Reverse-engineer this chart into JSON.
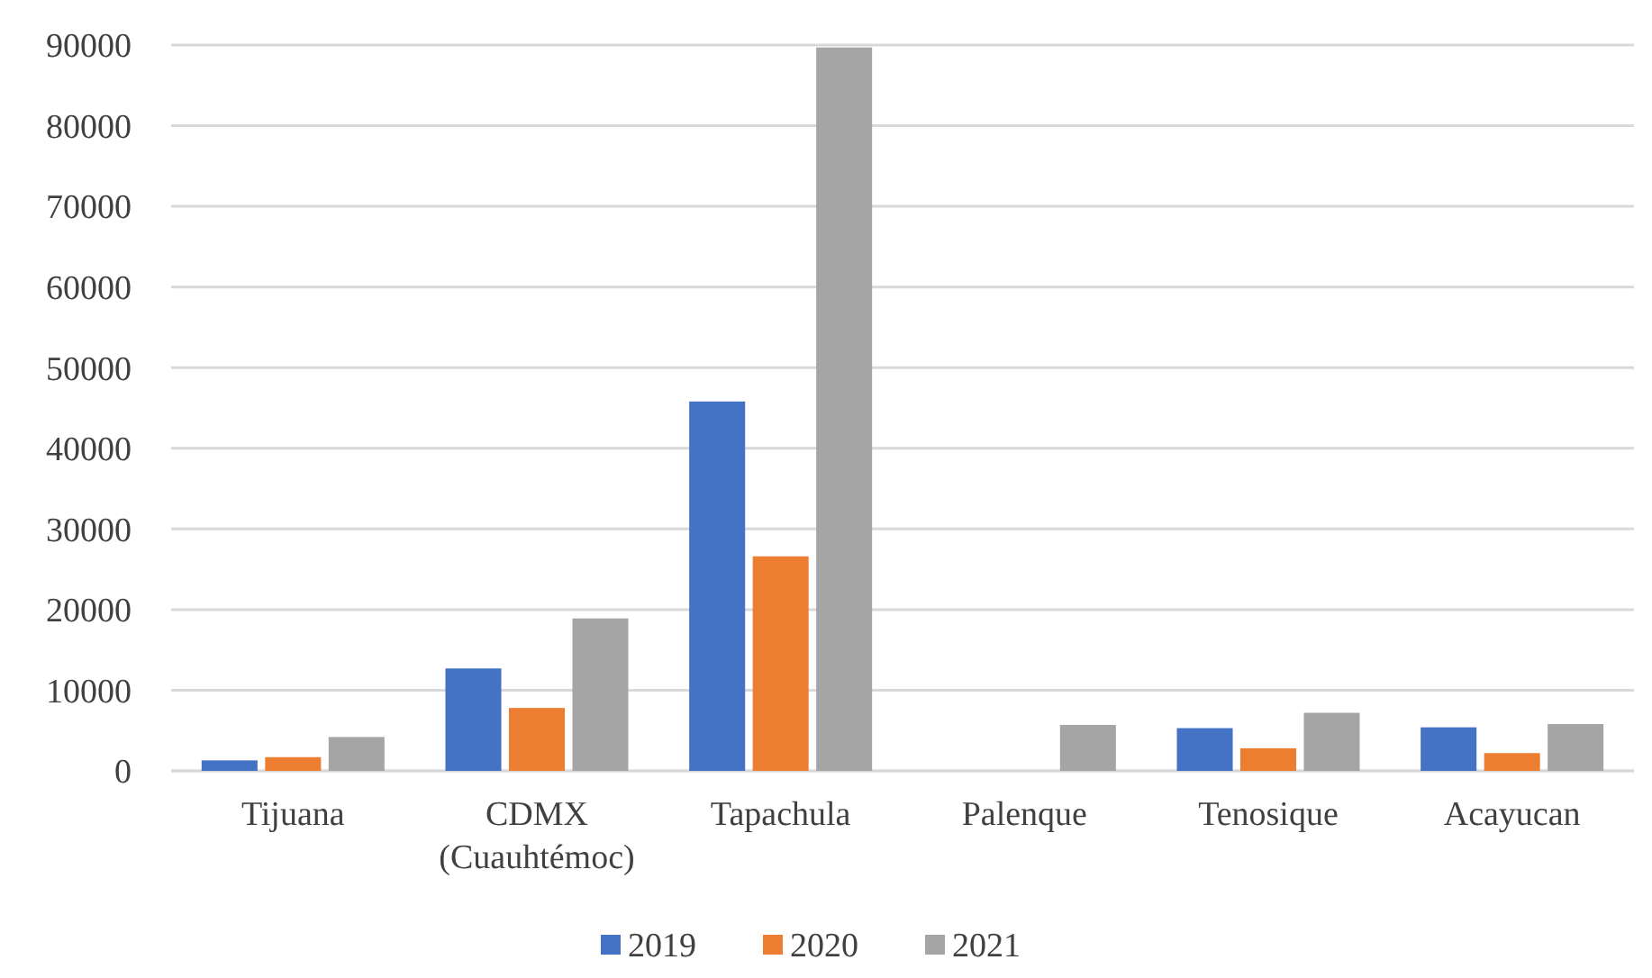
{
  "chart_data": {
    "type": "bar",
    "categories": [
      "Tijuana",
      "CDMX (Cuauhtémoc)",
      "Tapachula",
      "Palenque",
      "Tenosique",
      "Acayucan"
    ],
    "series": [
      {
        "name": "2019",
        "color": "#4472c4",
        "values": [
          1300,
          12700,
          45800,
          null,
          5300,
          5400
        ]
      },
      {
        "name": "2020",
        "color": "#ed7d31",
        "values": [
          1700,
          7800,
          26600,
          null,
          2800,
          2200
        ]
      },
      {
        "name": "2021",
        "color": "#a5a5a5",
        "values": [
          4200,
          18900,
          89700,
          5700,
          7200,
          5800
        ]
      }
    ],
    "ylim": [
      0,
      90000
    ],
    "yticks": [
      0,
      10000,
      20000,
      30000,
      40000,
      50000,
      60000,
      70000,
      80000,
      90000
    ],
    "grid": "y",
    "legend": "bottom"
  }
}
